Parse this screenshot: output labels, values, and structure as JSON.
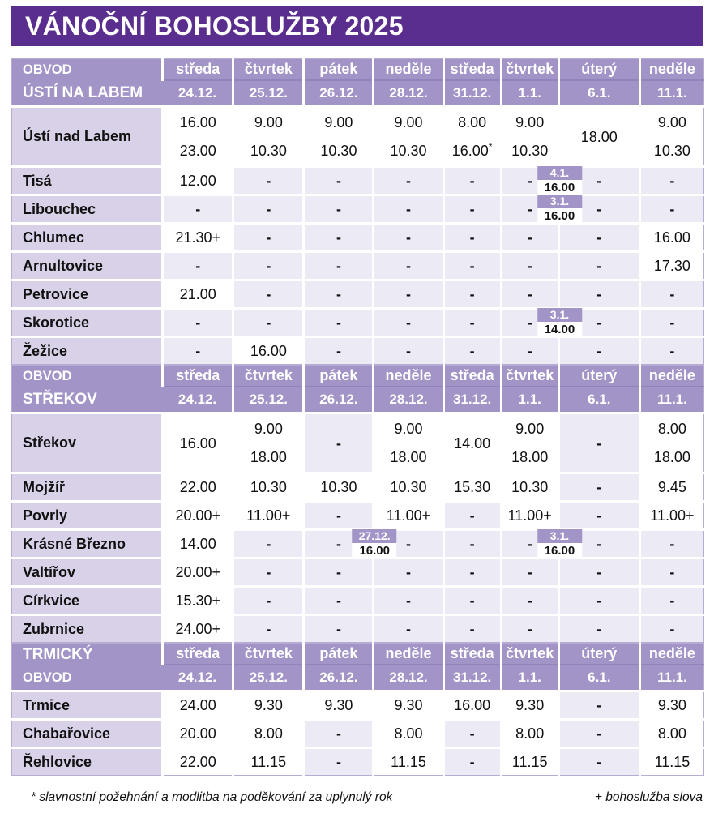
{
  "title": "VÁNOČNÍ BOHOSLUŽBY 2025",
  "columns": {
    "days": [
      "středa",
      "čtvrtek",
      "pátek",
      "neděle",
      "středa",
      "čtvrtek",
      "úterý",
      "neděle"
    ],
    "dates": [
      "24.12.",
      "25.12.",
      "26.12.",
      "28.12.",
      "31.12.",
      "1.1.",
      "6.1.",
      "11.1."
    ]
  },
  "sections": [
    {
      "name_lines": [
        "OBVOD",
        "ÚSTÍ NA LABEM"
      ],
      "rows": [
        {
          "place": "Ústí nad Labem",
          "tall": true,
          "cells": [
            [
              "16.00",
              "23.00"
            ],
            [
              "9.00",
              "10.30"
            ],
            [
              "9.00",
              "10.30"
            ],
            [
              "9.00",
              "10.30"
            ],
            [
              "8.00",
              "16.00*"
            ],
            [
              "9.00",
              "10.30"
            ],
            [
              "18.00"
            ],
            [
              "9.00",
              "10.30"
            ]
          ]
        },
        {
          "place": "Tisá",
          "cells": [
            [
              "12.00"
            ],
            [
              "-"
            ],
            [
              "-"
            ],
            [
              "-"
            ],
            [
              "-"
            ],
            [
              "-"
            ],
            [
              "-"
            ],
            [
              "-"
            ]
          ],
          "badges": [
            {
              "after_col": 5,
              "date": "4.1.",
              "time": "16.00"
            }
          ]
        },
        {
          "place": "Libouchec",
          "cells": [
            [
              "-"
            ],
            [
              "-"
            ],
            [
              "-"
            ],
            [
              "-"
            ],
            [
              "-"
            ],
            [
              "-"
            ],
            [
              "-"
            ],
            [
              "-"
            ]
          ],
          "badges": [
            {
              "after_col": 5,
              "date": "3.1.",
              "time": "16.00"
            }
          ]
        },
        {
          "place": "Chlumec",
          "cells": [
            [
              "21.30+"
            ],
            [
              "-"
            ],
            [
              "-"
            ],
            [
              "-"
            ],
            [
              "-"
            ],
            [
              "-"
            ],
            [
              "-"
            ],
            [
              "16.00"
            ]
          ]
        },
        {
          "place": "Arnultovice",
          "cells": [
            [
              "-"
            ],
            [
              "-"
            ],
            [
              "-"
            ],
            [
              "-"
            ],
            [
              "-"
            ],
            [
              "-"
            ],
            [
              "-"
            ],
            [
              "17.30"
            ]
          ]
        },
        {
          "place": "Petrovice",
          "cells": [
            [
              "21.00"
            ],
            [
              "-"
            ],
            [
              "-"
            ],
            [
              "-"
            ],
            [
              "-"
            ],
            [
              "-"
            ],
            [
              "-"
            ],
            [
              "-"
            ]
          ]
        },
        {
          "place": "Skorotice",
          "cells": [
            [
              "-"
            ],
            [
              "-"
            ],
            [
              "-"
            ],
            [
              "-"
            ],
            [
              "-"
            ],
            [
              "-"
            ],
            [
              "-"
            ],
            [
              "-"
            ]
          ],
          "badges": [
            {
              "after_col": 5,
              "date": "3.1.",
              "time": "14.00"
            }
          ]
        },
        {
          "place": "Žežice",
          "cells": [
            [
              "-"
            ],
            [
              "16.00"
            ],
            [
              "-"
            ],
            [
              "-"
            ],
            [
              "-"
            ],
            [
              "-"
            ],
            [
              "-"
            ],
            [
              "-"
            ]
          ]
        }
      ]
    },
    {
      "name_lines": [
        "OBVOD",
        "STŘEKOV"
      ],
      "rows": [
        {
          "place": "Střekov",
          "tall": true,
          "cells": [
            [
              "16.00"
            ],
            [
              "9.00",
              "18.00"
            ],
            [
              "-"
            ],
            [
              "9.00",
              "18.00"
            ],
            [
              "14.00"
            ],
            [
              "9.00",
              "18.00"
            ],
            [
              "-"
            ],
            [
              "8.00",
              "18.00"
            ]
          ]
        },
        {
          "place": "Mojžíř",
          "cells": [
            [
              "22.00"
            ],
            [
              "10.30"
            ],
            [
              "10.30"
            ],
            [
              "10.30"
            ],
            [
              "15.30"
            ],
            [
              "10.30"
            ],
            [
              "-"
            ],
            [
              "9.45"
            ]
          ]
        },
        {
          "place": "Povrly",
          "cells": [
            [
              "20.00+"
            ],
            [
              "11.00+"
            ],
            [
              "-"
            ],
            [
              "11.00+"
            ],
            [
              "-"
            ],
            [
              "11.00+"
            ],
            [
              "-"
            ],
            [
              "11.00+"
            ]
          ]
        },
        {
          "place": "Krásné Březno",
          "cells": [
            [
              "14.00"
            ],
            [
              "-"
            ],
            [
              "-"
            ],
            [
              "-"
            ],
            [
              "-"
            ],
            [
              "-"
            ],
            [
              "-"
            ],
            [
              "-"
            ]
          ],
          "badges": [
            {
              "after_col": 2,
              "date": "27.12.",
              "time": "16.00"
            },
            {
              "after_col": 5,
              "date": "3.1.",
              "time": "16.00"
            }
          ]
        },
        {
          "place": "Valtířov",
          "cells": [
            [
              "20.00+"
            ],
            [
              "-"
            ],
            [
              "-"
            ],
            [
              "-"
            ],
            [
              "-"
            ],
            [
              "-"
            ],
            [
              "-"
            ],
            [
              "-"
            ]
          ]
        },
        {
          "place": "Církvice",
          "cells": [
            [
              "15.30+"
            ],
            [
              "-"
            ],
            [
              "-"
            ],
            [
              "-"
            ],
            [
              "-"
            ],
            [
              "-"
            ],
            [
              "-"
            ],
            [
              "-"
            ]
          ]
        },
        {
          "place": "Zubrnice",
          "cells": [
            [
              "24.00+"
            ],
            [
              "-"
            ],
            [
              "-"
            ],
            [
              "-"
            ],
            [
              "-"
            ],
            [
              "-"
            ],
            [
              "-"
            ],
            [
              "-"
            ]
          ]
        }
      ]
    },
    {
      "name_lines": [
        "TRMICKÝ",
        "OBVOD"
      ],
      "rows": [
        {
          "place": "Trmice",
          "cells": [
            [
              "24.00"
            ],
            [
              "9.30"
            ],
            [
              "9.30"
            ],
            [
              "9.30"
            ],
            [
              "16.00"
            ],
            [
              "9.30"
            ],
            [
              "-"
            ],
            [
              "9.30"
            ]
          ]
        },
        {
          "place": "Chabařovice",
          "cells": [
            [
              "20.00"
            ],
            [
              "8.00"
            ],
            [
              "-"
            ],
            [
              "8.00"
            ],
            [
              "-"
            ],
            [
              "8.00"
            ],
            [
              "-"
            ],
            [
              "8.00"
            ]
          ]
        },
        {
          "place": "Řehlovice",
          "cells": [
            [
              "22.00"
            ],
            [
              "11.15"
            ],
            [
              "-"
            ],
            [
              "11.15"
            ],
            [
              "-"
            ],
            [
              "11.15"
            ],
            [
              "-"
            ],
            [
              "11.15"
            ]
          ]
        }
      ]
    }
  ],
  "footnotes": {
    "left": "* slavnostní požehnání a modlitba na poděkování za uplynulý rok",
    "right": "+ bohoslužba slova"
  },
  "colors": {
    "banner": "#5a2e8e",
    "header": "#a394c8",
    "place_cell": "#d9d1e8",
    "empty_cell": "#eceaf4",
    "time_cell": "#ffffff",
    "text": "#111111"
  }
}
